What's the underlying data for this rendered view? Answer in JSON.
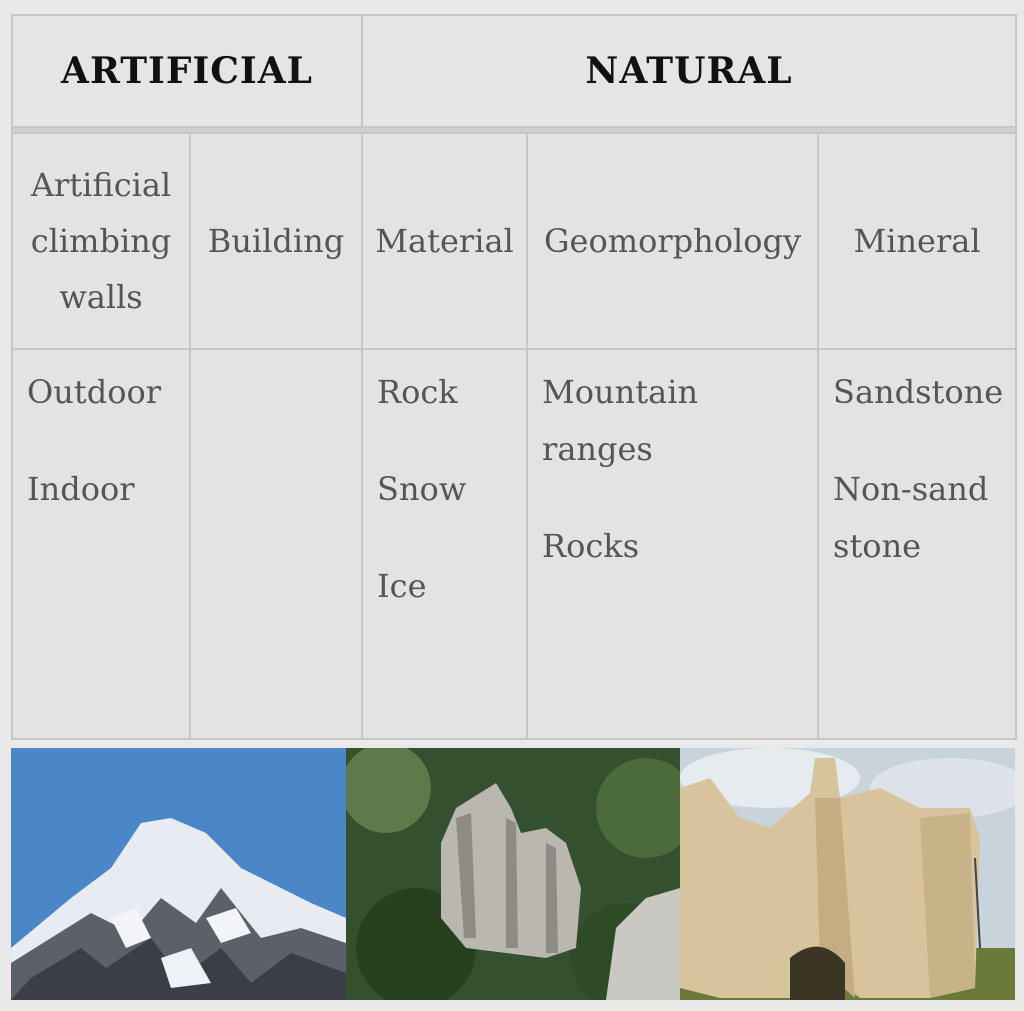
{
  "header": {
    "artificial": "ARTIFICIAL",
    "natural": "NATURAL"
  },
  "subheaders": [
    "Artificial climbing walls",
    "Building",
    "Material",
    "Geomorphology",
    "Mineral"
  ],
  "columns": {
    "artificial_walls": [
      "Outdoor",
      "Indoor"
    ],
    "building": [],
    "material": [
      "Rock",
      "Snow",
      "Ice"
    ],
    "geomorphology": [
      "Mountain ranges",
      "Rocks"
    ],
    "mineral": [
      "Sandstone",
      "Non-sandstone"
    ]
  },
  "photos": [
    "snow-mountain-photo",
    "sandstone-rock-towers-photo",
    "artificial-climbing-wall-photo"
  ]
}
